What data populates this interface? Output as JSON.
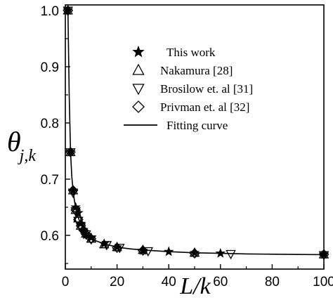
{
  "chart_data": {
    "type": "scatter",
    "xlabel": "L/k",
    "ylabel": {
      "main": "θ",
      "sub": "j,k"
    },
    "xlim": [
      0,
      100
    ],
    "ylim": [
      0.54,
      1.01
    ],
    "xticks": [
      0,
      20,
      40,
      60,
      80,
      100
    ],
    "yticks": [
      0.6,
      0.7,
      0.8,
      0.9,
      1.0
    ],
    "xtick_labels": [
      "0",
      "20",
      "40",
      "60",
      "80",
      "100"
    ],
    "ytick_labels": [
      "0.6",
      "0.7",
      "0.8",
      "0.9",
      "1.0"
    ],
    "legend_position": "upper-right",
    "grid": false,
    "series": [
      {
        "name": "This work",
        "marker": "star",
        "x": [
          1,
          2,
          3,
          4,
          5,
          6,
          7,
          8,
          10,
          15,
          20,
          30,
          40,
          50,
          60,
          100
        ],
        "y": [
          1.0,
          0.748,
          0.68,
          0.65,
          0.64,
          0.621,
          0.61,
          0.601,
          0.596,
          0.585,
          0.579,
          0.573,
          0.571,
          0.569,
          0.568,
          0.566
        ]
      },
      {
        "name": "Nakamura  [28]",
        "marker": "triangle-up",
        "x": [
          1,
          2,
          3,
          4,
          5,
          6,
          8,
          10,
          15,
          20,
          30,
          50,
          100
        ],
        "y": [
          1.0,
          0.748,
          0.68,
          0.645,
          0.63,
          0.617,
          0.603,
          0.594,
          0.584,
          0.579,
          0.574,
          0.569,
          0.566
        ]
      },
      {
        "name": "Brosilow et. al [31]",
        "marker": "triangle-down",
        "x": [
          1,
          2,
          3,
          4,
          5,
          6,
          8,
          10,
          16,
          21,
          32,
          64,
          100
        ],
        "y": [
          1.0,
          0.748,
          0.676,
          0.643,
          0.626,
          0.615,
          0.602,
          0.593,
          0.583,
          0.578,
          0.572,
          0.567,
          0.565
        ]
      },
      {
        "name": "Privman et. al [32]",
        "marker": "diamond",
        "x": [
          1,
          2,
          3,
          4,
          5,
          6,
          7,
          8,
          10,
          20,
          30,
          50,
          100
        ],
        "y": [
          1.0,
          0.748,
          0.68,
          0.645,
          0.628,
          0.617,
          0.609,
          0.602,
          0.594,
          0.578,
          0.573,
          0.568,
          0.566
        ]
      }
    ],
    "fit_curve": {
      "name": "Fitting curve",
      "x": [
        1,
        1.5,
        2,
        2.5,
        3,
        3.5,
        4,
        5,
        6,
        7,
        8,
        10,
        12,
        15,
        20,
        25,
        30,
        40,
        50,
        60,
        70,
        80,
        90,
        100
      ],
      "y": [
        1.0,
        0.85,
        0.748,
        0.705,
        0.68,
        0.662,
        0.648,
        0.632,
        0.619,
        0.61,
        0.603,
        0.595,
        0.59,
        0.585,
        0.579,
        0.576,
        0.574,
        0.571,
        0.569,
        0.568,
        0.567,
        0.5665,
        0.566,
        0.5658
      ]
    }
  }
}
